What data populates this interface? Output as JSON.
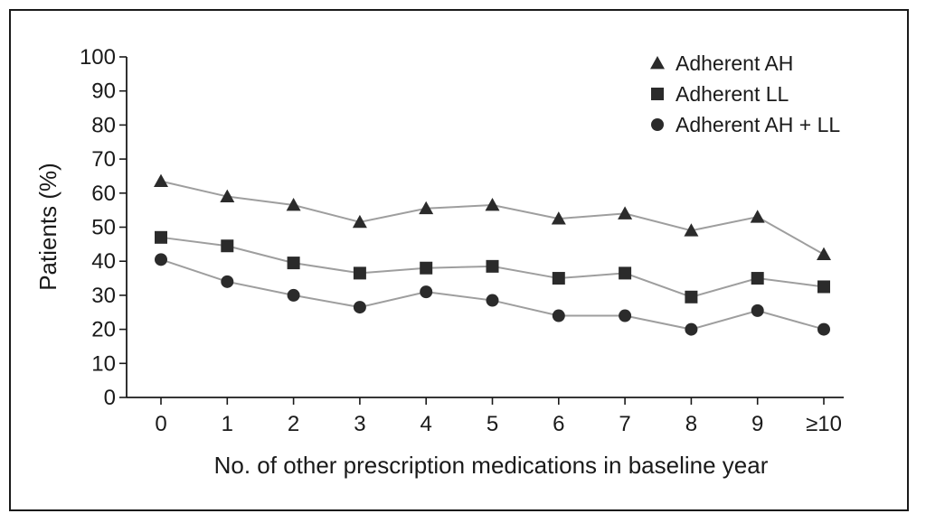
{
  "chart_data": {
    "type": "line",
    "title": "",
    "xlabel": "No. of other prescription medications in baseline year",
    "ylabel": "Patients (%)",
    "categories": [
      "0",
      "1",
      "2",
      "3",
      "4",
      "5",
      "6",
      "7",
      "8",
      "9",
      "≥10"
    ],
    "ylim": [
      0,
      100
    ],
    "yticks": [
      0,
      10,
      20,
      30,
      40,
      50,
      60,
      70,
      80,
      90,
      100
    ],
    "grid": false,
    "legend_position": "top-right",
    "series": [
      {
        "name": "Adherent AH",
        "marker": "triangle",
        "values": [
          63.5,
          59,
          56.5,
          51.5,
          55.5,
          56.5,
          52.5,
          54,
          49,
          53,
          42
        ]
      },
      {
        "name": "Adherent LL",
        "marker": "square",
        "values": [
          47,
          44.5,
          39.5,
          36.5,
          38,
          38.5,
          35,
          36.5,
          29.5,
          35,
          32.5
        ]
      },
      {
        "name": "Adherent AH + LL",
        "marker": "circle",
        "values": [
          40.5,
          34,
          30,
          26.5,
          31,
          28.5,
          24,
          24,
          20,
          25.5,
          20
        ]
      }
    ],
    "colors": {
      "line": "#9e9e9e",
      "marker": "#2b2b2b",
      "axis": "#1a1a1a"
    }
  }
}
